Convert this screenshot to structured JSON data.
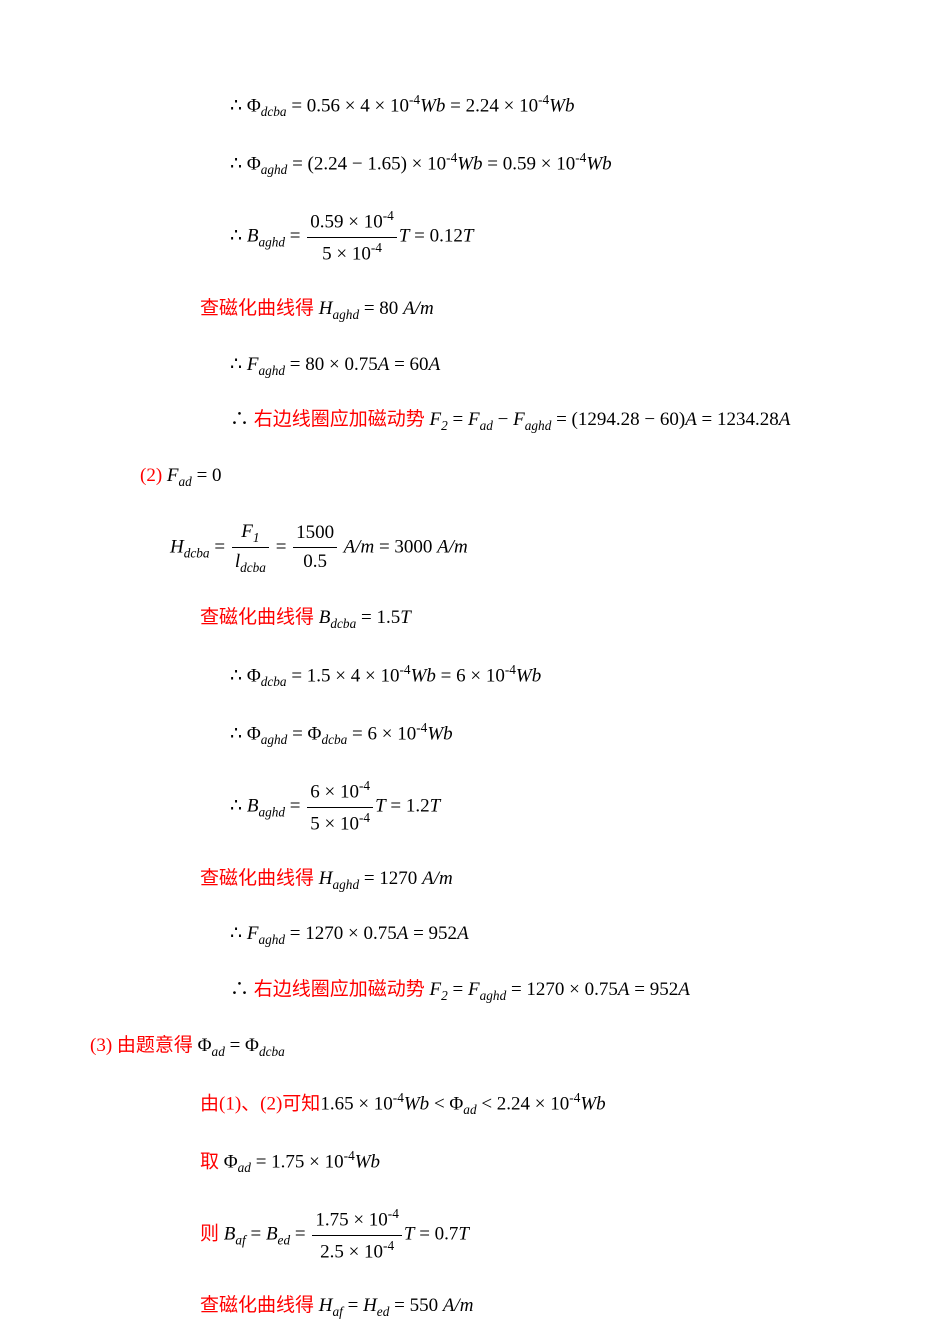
{
  "eq1": {
    "prefix": "∴ Φ",
    "sub": "dcba",
    "expr": " = 0.56 × 4 × 10",
    "sup1": "-4",
    "wb1": "Wb",
    "eq": " = 2.24 × 10",
    "sup2": "-4",
    "wb2": "Wb"
  },
  "eq2": {
    "prefix": "∴ Φ",
    "sub": "aghd",
    "expr": " = (2.24 − 1.65) × 10",
    "sup1": "-4",
    "wb1": "Wb",
    "eq": " = 0.59 × 10",
    "sup2": "-4",
    "wb2": "Wb"
  },
  "eq3": {
    "prefix": "∴ ",
    "B": "B",
    "sub": "aghd",
    "eq1": " = ",
    "num": "0.59 × 10",
    "numsup": "-4",
    "den": "5 × 10",
    "densup": "-4",
    "T1": "T",
    "eq2": " = 0.12",
    "T2": "T"
  },
  "eq4": {
    "label": "查磁化曲线得",
    "H": " H",
    "sub": "aghd",
    "val": " = 80 ",
    "unit": "A/m"
  },
  "eq5": {
    "prefix": "∴ ",
    "F": "F",
    "sub": "aghd",
    "expr": " = 80 × 0.75",
    "A1": "A",
    "eq": " = 60",
    "A2": "A"
  },
  "eq6": {
    "prefix": "∴ ",
    "label": "右边线圈应加磁动势",
    "F": " F",
    "sub1": "2",
    "eq1": " = ",
    "Fa": "F",
    "sub2": "ad",
    "minus": " − ",
    "Fb": "F",
    "sub3": "aghd",
    "eq2": " = (1294.28 − 60)",
    "A1": "A",
    "eq3": " = 1234.28",
    "A2": "A"
  },
  "eq7": {
    "label": "(2) ",
    "F": "F",
    "sub": "ad",
    "val": " = 0"
  },
  "eq8": {
    "H": "H",
    "sub1": "dcba",
    "eq1": " = ",
    "num1": "F",
    "num1sub": "1",
    "den1": "l",
    "den1sub": "dcba",
    "eq2": " = ",
    "num2": "1500",
    "den2": "0.5",
    "unit1": " A/m",
    "eq3": " = 3000 ",
    "unit2": "A/m"
  },
  "eq9": {
    "label": "查磁化曲线得",
    "B": " B",
    "sub": "dcba",
    "val": " = 1.5",
    "T": "T"
  },
  "eq10": {
    "prefix": "∴ Φ",
    "sub": "dcba",
    "expr": " = 1.5 × 4 × 10",
    "sup1": "-4",
    "wb1": "Wb",
    "eq": " = 6 × 10",
    "sup2": "-4",
    "wb2": "Wb"
  },
  "eq11": {
    "prefix": "∴ Φ",
    "sub1": "aghd",
    "eq1": " = Φ",
    "sub2": "dcba",
    "eq2": " = 6 × 10",
    "sup": "-4",
    "wb": "Wb"
  },
  "eq12": {
    "prefix": "∴ ",
    "B": "B",
    "sub": "aghd",
    "eq1": " = ",
    "num": "6 × 10",
    "numsup": "-4",
    "den": "5 × 10",
    "densup": "-4",
    "T1": "T",
    "eq2": " = 1.2",
    "T2": "T"
  },
  "eq13": {
    "label": "查磁化曲线得",
    "H": " H",
    "sub": "aghd",
    "val": " = 1270 ",
    "unit": "A/m"
  },
  "eq14": {
    "prefix": "∴ ",
    "F": "F",
    "sub": "aghd",
    "expr": " = 1270 × 0.75",
    "A1": "A",
    "eq": " = 952",
    "A2": "A"
  },
  "eq15": {
    "prefix": "∴ ",
    "label": "右边线圈应加磁动势",
    "F": " F",
    "sub1": "2",
    "eq1": " = ",
    "Fb": "F",
    "sub2": "aghd",
    "eq2": " = 1270 × 0.75",
    "A1": "A",
    "eq3": " = 952",
    "A2": "A"
  },
  "eq16": {
    "label": "(3) 由题意得 ",
    "P1": "Φ",
    "sub1": "ad",
    "eq": " = Φ",
    "sub2": "dcba"
  },
  "eq17": {
    "label": "由(1)、(2)可知",
    "v1": "1.65 × 10",
    "sup1": "-4",
    "wb1": "Wb",
    "lt1": " < Φ",
    "sub": "ad",
    "lt2": " < 2.24 × 10",
    "sup2": "-4",
    "wb2": "Wb"
  },
  "eq18": {
    "label": "取 ",
    "P": "Φ",
    "sub": "ad",
    "val": " = 1.75 × 10",
    "sup": "-4",
    "wb": "Wb"
  },
  "eq19": {
    "label": "则 ",
    "B1": "B",
    "sub1": "af",
    "eq1": " = ",
    "B2": "B",
    "sub2": "ed",
    "eq2": " = ",
    "num": "1.75 × 10",
    "numsup": "-4",
    "den": "2.5 × 10",
    "densup": "-4",
    "T1": "T",
    "eq3": " = 0.7",
    "T2": "T"
  },
  "eq20": {
    "label": "查磁化曲线得",
    "H1": " H",
    "sub1": "af",
    "eq1": " = ",
    "H2": "H",
    "sub2": "ed",
    "val": " = 550 ",
    "unit": "A/m"
  }
}
